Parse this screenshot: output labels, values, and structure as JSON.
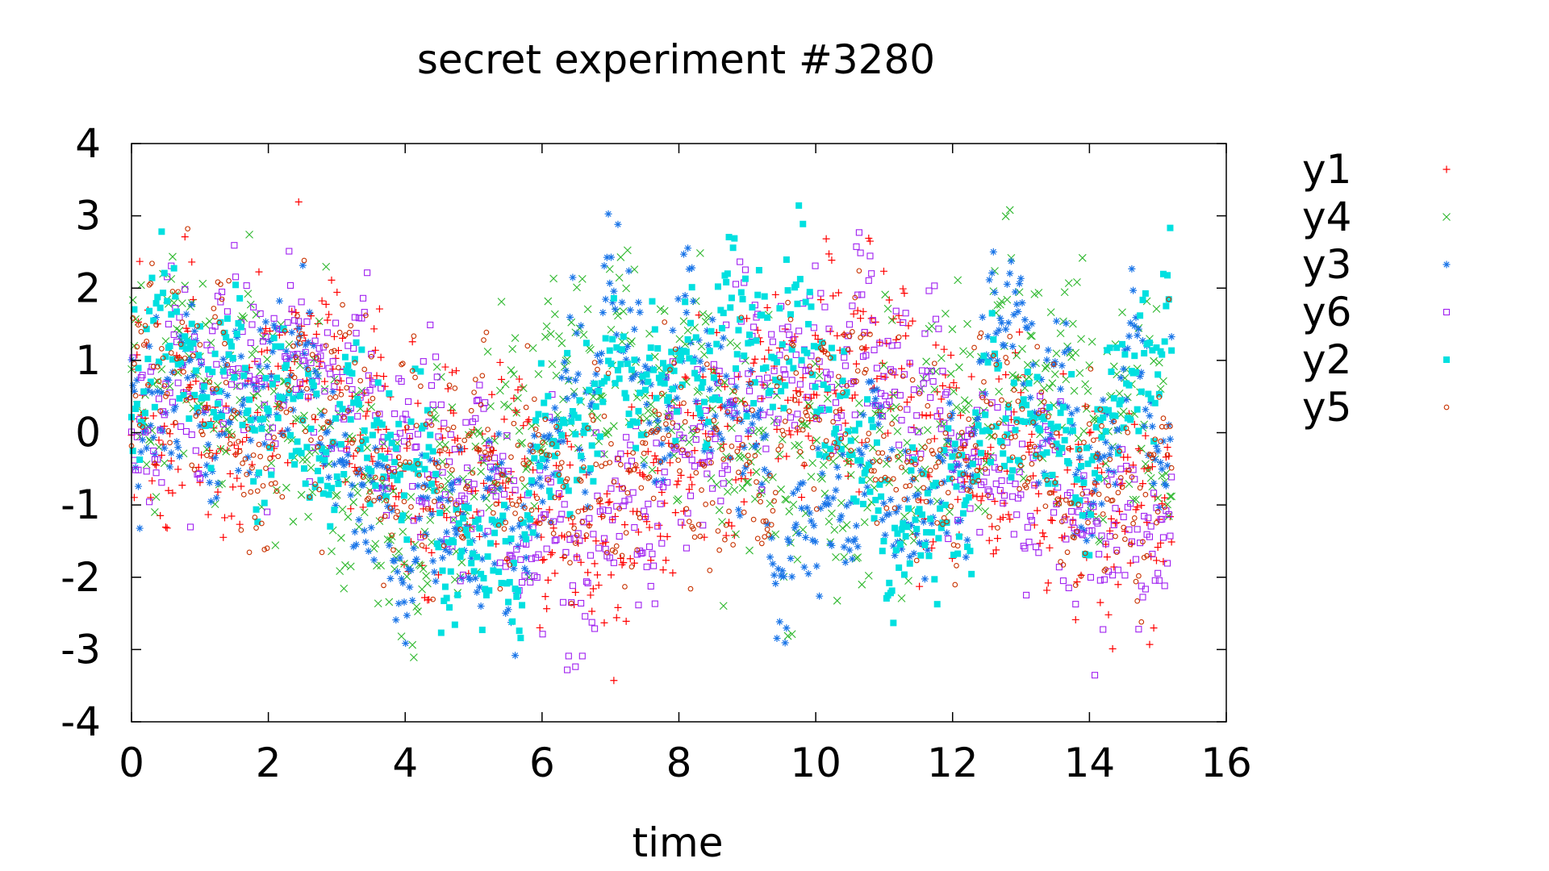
{
  "chart_data": {
    "type": "scatter",
    "title": "secret experiment #3280",
    "xlabel": "time",
    "ylabel": "",
    "xlim": [
      0,
      16
    ],
    "ylim": [
      -4,
      4
    ],
    "xticks": [
      0,
      2,
      4,
      6,
      8,
      10,
      12,
      14,
      16
    ],
    "yticks": [
      -4,
      -3,
      -2,
      -1,
      0,
      1,
      2,
      3,
      4
    ],
    "grid": false,
    "legend_position": "right-outside",
    "x_range_of_data": [
      0,
      15.2
    ],
    "points_per_series": 760,
    "series": [
      {
        "name": "y1",
        "color": "#ff0000",
        "marker": "plus",
        "waypoints": [
          [
            0,
            0.5
          ],
          [
            1,
            0.3
          ],
          [
            1.6,
            -0.5
          ],
          [
            2.2,
            1.4
          ],
          [
            3,
            0.8
          ],
          [
            3.8,
            -0.6
          ],
          [
            4.6,
            -0.8
          ],
          [
            5.2,
            -0.4
          ],
          [
            6,
            -1.2
          ],
          [
            6.6,
            -1.6
          ],
          [
            7.4,
            -1.2
          ],
          [
            8,
            -0.3
          ],
          [
            8.8,
            0.2
          ],
          [
            9.6,
            0.6
          ],
          [
            10.2,
            0.9
          ],
          [
            10.8,
            1.3
          ],
          [
            11.4,
            0.4
          ],
          [
            12,
            -0.4
          ],
          [
            12.6,
            -0.2
          ],
          [
            13.2,
            -0.3
          ],
          [
            13.8,
            -1.4
          ],
          [
            14.4,
            -0.9
          ],
          [
            15.2,
            -1.1
          ]
        ],
        "spread": 1.2
      },
      {
        "name": "y4",
        "color": "#2eb82e",
        "marker": "cross",
        "waypoints": [
          [
            0,
            0.8
          ],
          [
            1,
            0.9
          ],
          [
            1.8,
            0.4
          ],
          [
            2.6,
            0.5
          ],
          [
            3.4,
            -0.9
          ],
          [
            4.2,
            -1.3
          ],
          [
            5,
            -0.6
          ],
          [
            5.6,
            0.3
          ],
          [
            6.2,
            0.6
          ],
          [
            7,
            0.8
          ],
          [
            7.8,
            0.5
          ],
          [
            8.6,
            0.2
          ],
          [
            9.4,
            -0.6
          ],
          [
            10.2,
            -0.8
          ],
          [
            11,
            -0.4
          ],
          [
            11.8,
            0.3
          ],
          [
            12.6,
            0.9
          ],
          [
            13.4,
            1
          ],
          [
            14.2,
            0.2
          ],
          [
            15.2,
            0
          ]
        ],
        "spread": 1.3
      },
      {
        "name": "y3",
        "color": "#1a75e8",
        "marker": "asterisk",
        "waypoints": [
          [
            0,
            0.6
          ],
          [
            1,
            0.4
          ],
          [
            1.6,
            0.1
          ],
          [
            2.2,
            1.2
          ],
          [
            2.8,
            0.4
          ],
          [
            3.4,
            -1.2
          ],
          [
            4,
            -1.6
          ],
          [
            4.8,
            -0.9
          ],
          [
            5.4,
            -1.6
          ],
          [
            6,
            -0.6
          ],
          [
            6.6,
            0.6
          ],
          [
            6.9,
            1.7
          ],
          [
            7.6,
            0.5
          ],
          [
            8.3,
            1.2
          ],
          [
            9,
            -0.2
          ],
          [
            9.6,
            -1.8
          ],
          [
            10,
            -1.3
          ],
          [
            10.6,
            -0.4
          ],
          [
            11.2,
            -0.8
          ],
          [
            11.8,
            -1.2
          ],
          [
            12.4,
            0.6
          ],
          [
            12.9,
            1.9
          ],
          [
            13.4,
            0.3
          ],
          [
            14,
            -0.6
          ],
          [
            14.6,
            0.7
          ],
          [
            15.2,
            0.2
          ]
        ],
        "spread": 0.9
      },
      {
        "name": "y6",
        "color": "#a020f0",
        "marker": "square",
        "waypoints": [
          [
            0,
            0.3
          ],
          [
            0.8,
            0.5
          ],
          [
            1.4,
            1.1
          ],
          [
            2,
            0.9
          ],
          [
            2.6,
            0.8
          ],
          [
            3.4,
            0.6
          ],
          [
            4.2,
            -0.4
          ],
          [
            5,
            -0.5
          ],
          [
            5.8,
            -1.3
          ],
          [
            6.4,
            -1.8
          ],
          [
            7.2,
            -1.2
          ],
          [
            8,
            -0.4
          ],
          [
            8.6,
            0.4
          ],
          [
            9.4,
            0.8
          ],
          [
            10.2,
            1
          ],
          [
            10.8,
            1.5
          ],
          [
            11.4,
            0.5
          ],
          [
            12,
            0.2
          ],
          [
            12.6,
            -0.6
          ],
          [
            13.2,
            -0.6
          ],
          [
            13.8,
            -1.2
          ],
          [
            14.4,
            -1.6
          ],
          [
            15.2,
            -1
          ]
        ],
        "spread": 1.1
      },
      {
        "name": "y2",
        "color": "#00e0e0",
        "marker": "filled-square",
        "waypoints": [
          [
            0,
            1
          ],
          [
            0.8,
            1.3
          ],
          [
            1.4,
            0.6
          ],
          [
            2,
            0.3
          ],
          [
            2.8,
            -0.1
          ],
          [
            3.4,
            0.2
          ],
          [
            4,
            -0.3
          ],
          [
            4.6,
            -1.1
          ],
          [
            5.2,
            -2.1
          ],
          [
            5.8,
            -1.1
          ],
          [
            6.4,
            0.2
          ],
          [
            7,
            0.6
          ],
          [
            7.8,
            0.8
          ],
          [
            8.4,
            1
          ],
          [
            9.2,
            1.7
          ],
          [
            9.6,
            1.6
          ],
          [
            10.4,
            0.4
          ],
          [
            11,
            -1.2
          ],
          [
            11.6,
            -1.5
          ],
          [
            12.4,
            -0.1
          ],
          [
            13,
            0.4
          ],
          [
            13.6,
            -0.6
          ],
          [
            14.2,
            -0.2
          ],
          [
            14.8,
            1
          ],
          [
            15.2,
            1.6
          ]
        ],
        "spread": 0.9
      },
      {
        "name": "y5",
        "color": "#c83200",
        "marker": "circle",
        "waypoints": [
          [
            0,
            0.8
          ],
          [
            0.8,
            1.1
          ],
          [
            1.4,
            0.3
          ],
          [
            1.9,
            -0.9
          ],
          [
            2.4,
            0.5
          ],
          [
            3,
            0.7
          ],
          [
            3.6,
            -0.2
          ],
          [
            4.2,
            -0.5
          ],
          [
            5,
            -0.3
          ],
          [
            5.6,
            -0.6
          ],
          [
            6.2,
            -0.8
          ],
          [
            7,
            -0.7
          ],
          [
            7.8,
            -0.2
          ],
          [
            8.6,
            -0.6
          ],
          [
            9.2,
            -0.4
          ],
          [
            10,
            0.5
          ],
          [
            10.8,
            0.4
          ],
          [
            11.4,
            -0.3
          ],
          [
            12,
            -0.5
          ],
          [
            12.8,
            0.3
          ],
          [
            13.6,
            -0.9
          ],
          [
            14.4,
            -0.8
          ],
          [
            15.2,
            -0.5
          ]
        ],
        "spread": 1.2
      }
    ]
  }
}
